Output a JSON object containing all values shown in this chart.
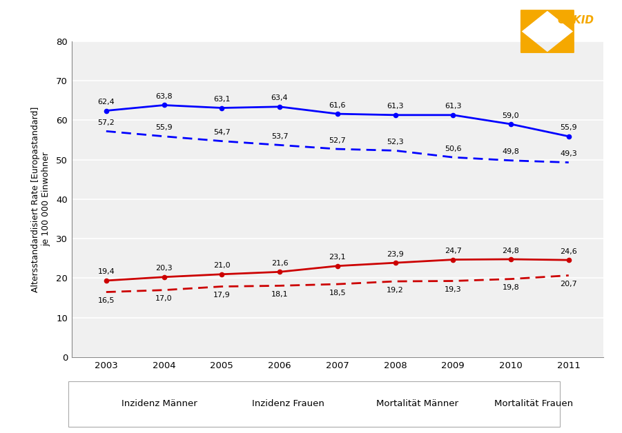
{
  "years": [
    2003,
    2004,
    2005,
    2006,
    2007,
    2008,
    2009,
    2010,
    2011
  ],
  "inzidenz_maenner": [
    62.4,
    63.8,
    63.1,
    63.4,
    61.6,
    61.3,
    61.3,
    59.0,
    55.9
  ],
  "inzidenz_frauen": [
    19.4,
    20.3,
    21.0,
    21.6,
    23.1,
    23.9,
    24.7,
    24.8,
    24.6
  ],
  "mortalitaet_maenner": [
    57.2,
    55.9,
    54.7,
    53.7,
    52.7,
    52.3,
    50.6,
    49.8,
    49.3
  ],
  "mortalitaet_frauen": [
    16.5,
    17.0,
    17.9,
    18.1,
    18.5,
    19.2,
    19.3,
    19.8,
    20.7
  ],
  "color_blue": "#0000FF",
  "color_red": "#CC0000",
  "ylabel": "Altersstandardisiert Rate [Europastandard]\nje 100 000 Einwohner",
  "ylim": [
    0,
    80
  ],
  "yticks": [
    0,
    10,
    20,
    30,
    40,
    50,
    60,
    70,
    80
  ],
  "legend_labels": [
    "Inzidenz Männer",
    "Inzidenz Frauen",
    "Mortalität Männer",
    "Mortalität Frauen"
  ],
  "plot_bg": "#F0F0F0",
  "fig_bg": "#FFFFFF",
  "fontsize_annot": 8.0,
  "fontsize_tick": 9.5,
  "fontsize_ylabel": 9.0,
  "lw": 2.0
}
